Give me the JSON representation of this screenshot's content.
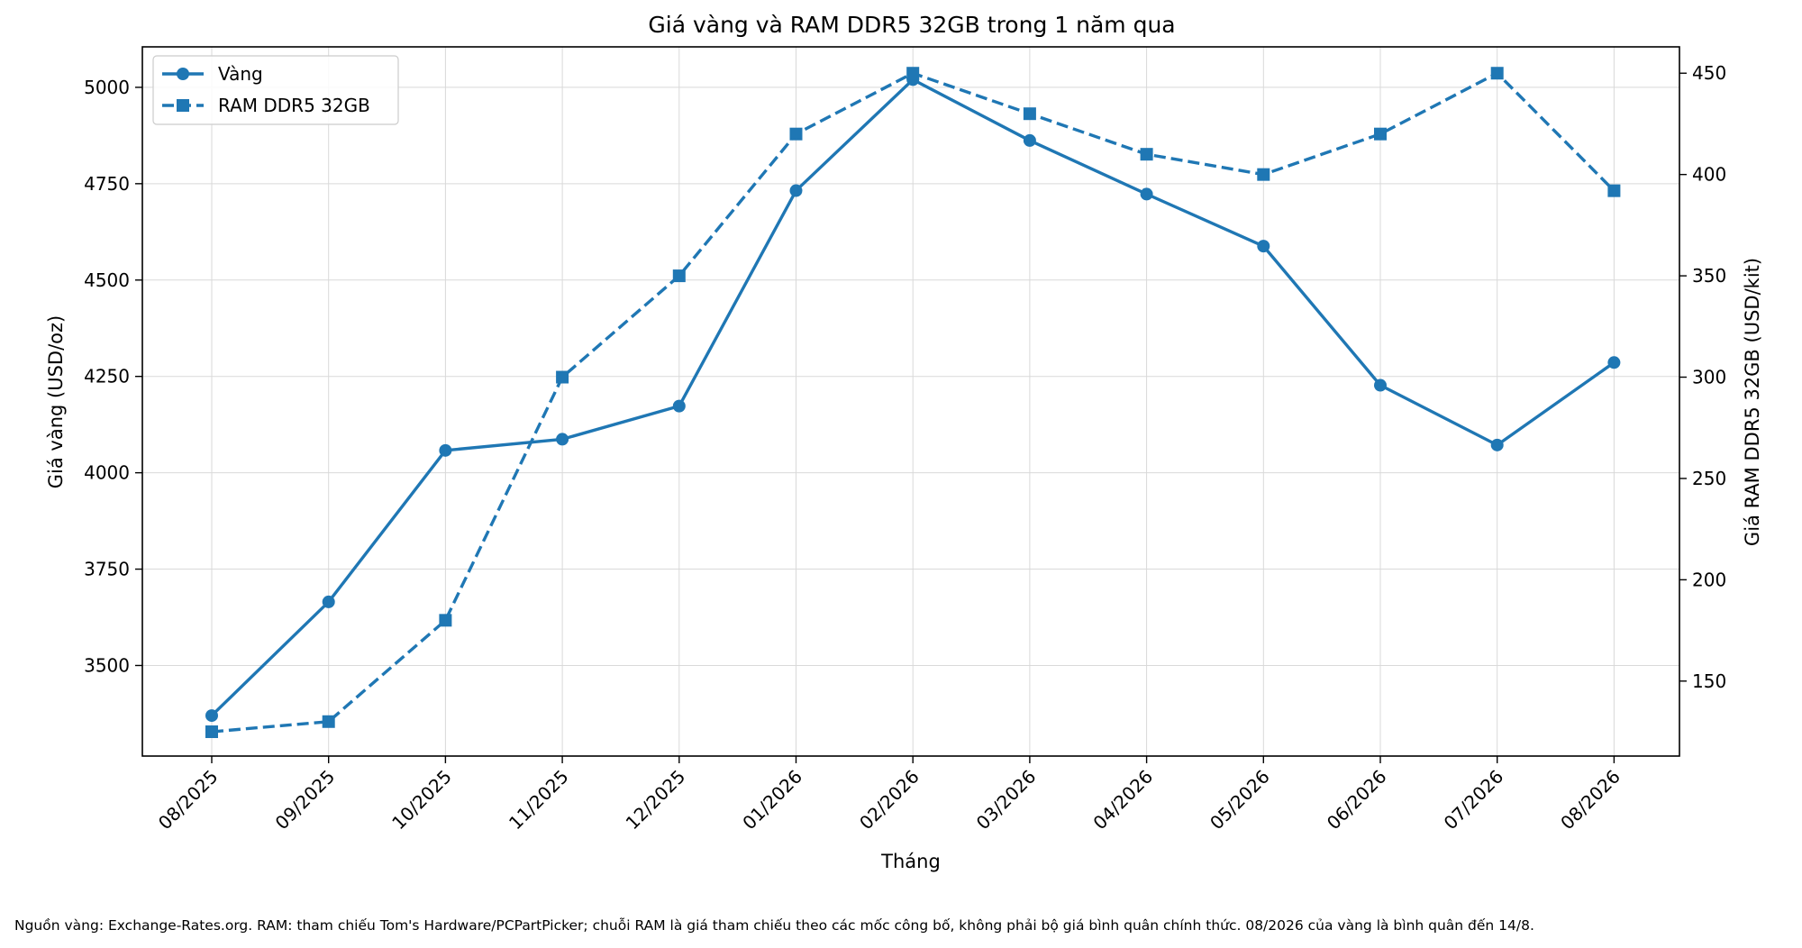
{
  "chart_data": {
    "type": "line",
    "title": "Giá vàng và RAM DDR5 32GB trong 1 năm qua",
    "xlabel": "Tháng",
    "ylabel_left": "Giá vàng (USD/oz)",
    "ylabel_right": "Giá RAM DDR5 32GB (USD/kit)",
    "categories": [
      "08/2025",
      "09/2025",
      "10/2025",
      "11/2025",
      "12/2025",
      "01/2026",
      "02/2026",
      "03/2026",
      "04/2026",
      "05/2026",
      "06/2026",
      "07/2026",
      "08/2026"
    ],
    "series": [
      {
        "name": "Vàng",
        "axis": "left",
        "marker": "circle",
        "linestyle": "solid",
        "values": [
          3370,
          3665,
          4058,
          4087,
          4173,
          4732,
          5020,
          4862,
          4723,
          4588,
          4227,
          4072,
          4286
        ]
      },
      {
        "name": "RAM DDR5 32GB",
        "axis": "right",
        "marker": "square",
        "linestyle": "dashed",
        "values": [
          125,
          130,
          180,
          300,
          350,
          420,
          450,
          430,
          410,
          400,
          420,
          450,
          392
        ]
      }
    ],
    "ylim_left": [
      3265,
      5105
    ],
    "ylim_right": [
      113,
      463
    ],
    "yticks_left": [
      3500,
      3750,
      4000,
      4250,
      4500,
      4750,
      5000
    ],
    "yticks_right": [
      150,
      200,
      250,
      300,
      350,
      400,
      450
    ],
    "grid": true,
    "legend_position": "top-left",
    "color": "#1f77b4"
  },
  "footnote": "Nguồn vàng: Exchange-Rates.org. RAM: tham chiếu Tom's Hardware/PCPartPicker; chuỗi RAM là giá tham chiếu theo các mốc công bố, không phải bộ giá bình quân chính thức. 08/2026 của vàng là bình quân đến 14/8."
}
